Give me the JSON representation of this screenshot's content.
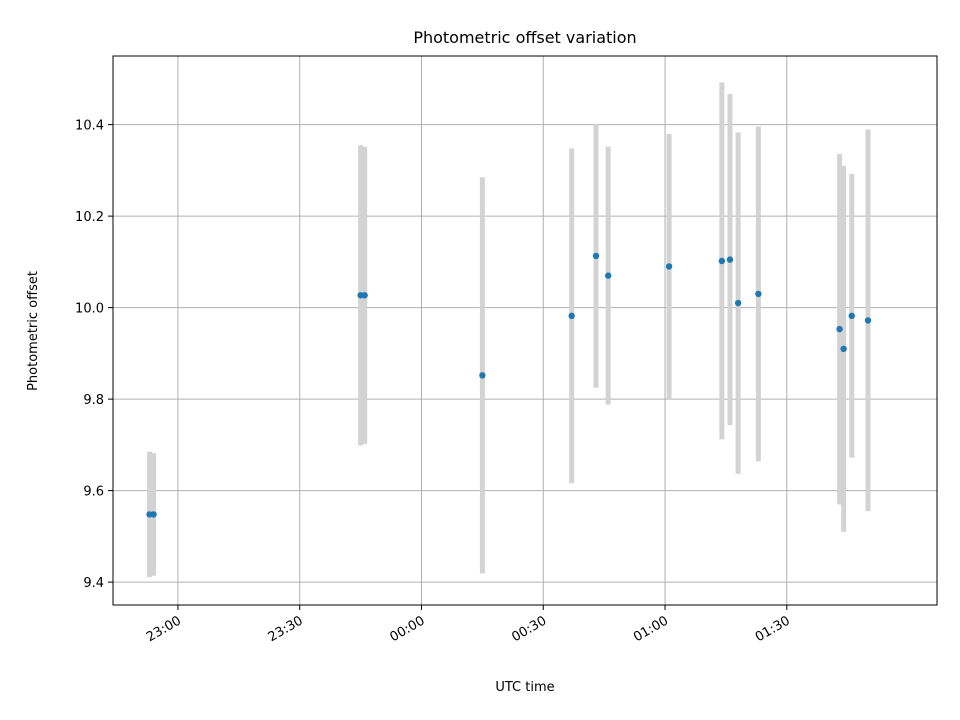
{
  "chart_data": {
    "type": "scatter",
    "title": "Photometric offset variation",
    "xlabel": "UTC time",
    "ylabel": "Photometric offset",
    "grid": true,
    "legend": "none",
    "x_axis_type": "time",
    "xlim": [
      "22:44",
      "02:07"
    ],
    "ylim": [
      9.35,
      10.55
    ],
    "x_ticks": [
      "23:00",
      "23:30",
      "00:00",
      "00:30",
      "01:00",
      "01:30"
    ],
    "y_ticks": [
      9.4,
      9.6,
      9.8,
      10.0,
      10.2,
      10.4
    ],
    "point_color": "#1f77b4",
    "errorbar_color": "#d3d3d3",
    "series": [
      {
        "points": [
          {
            "x": "22:53",
            "y": 9.548,
            "yerr": 0.137
          },
          {
            "x": "22:54",
            "y": 9.548,
            "yerr": 0.134
          },
          {
            "x": "23:45",
            "y": 10.027,
            "yerr": 0.328
          },
          {
            "x": "23:46",
            "y": 10.027,
            "yerr": 0.325
          },
          {
            "x": "00:15",
            "y": 9.852,
            "yerr": 0.433
          },
          {
            "x": "00:37",
            "y": 9.982,
            "yerr": 0.366
          },
          {
            "x": "00:43",
            "y": 10.113,
            "yerr": 0.288
          },
          {
            "x": "00:46",
            "y": 10.07,
            "yerr": 0.282
          },
          {
            "x": "01:01",
            "y": 10.09,
            "yerr": 0.29
          },
          {
            "x": "01:14",
            "y": 10.102,
            "yerr": 0.39
          },
          {
            "x": "01:16",
            "y": 10.105,
            "yerr": 0.362
          },
          {
            "x": "01:18",
            "y": 10.01,
            "yerr": 0.373
          },
          {
            "x": "01:23",
            "y": 10.03,
            "yerr": 0.366
          },
          {
            "x": "01:43",
            "y": 9.953,
            "yerr": 0.383
          },
          {
            "x": "01:44",
            "y": 9.91,
            "yerr": 0.4
          },
          {
            "x": "01:46",
            "y": 9.982,
            "yerr": 0.31
          },
          {
            "x": "01:50",
            "y": 9.972,
            "yerr": 0.417
          }
        ]
      }
    ]
  }
}
